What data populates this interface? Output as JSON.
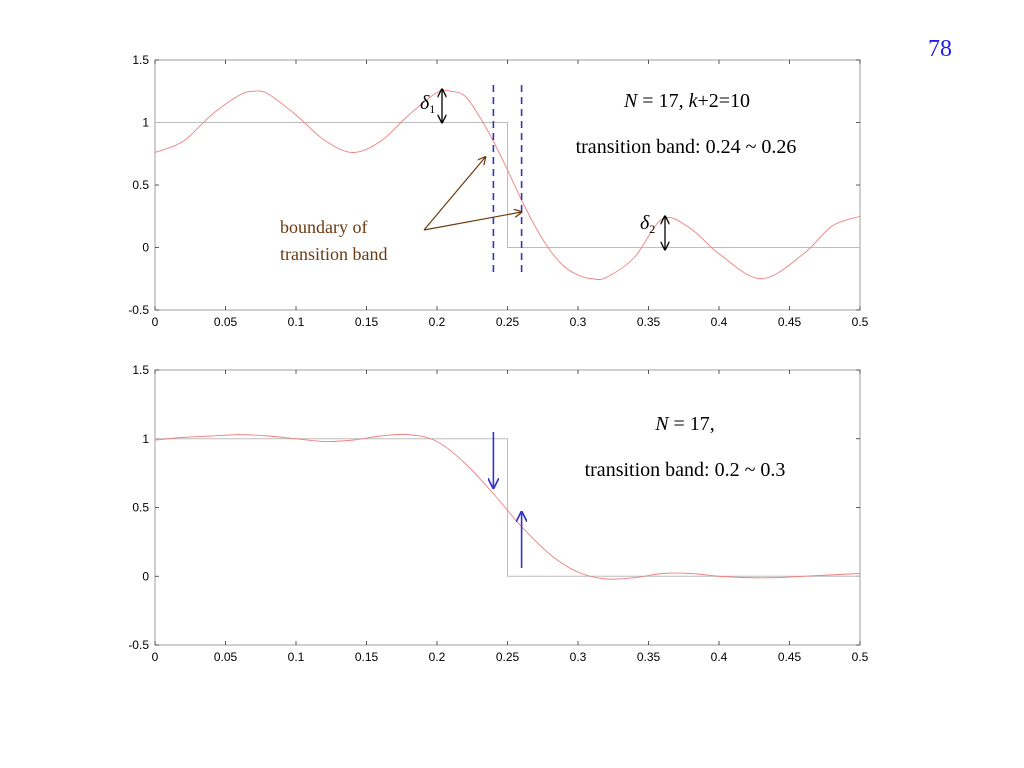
{
  "slide": {
    "page_number": "78",
    "page_number_color": "#1f1fe0"
  },
  "colors": {
    "ideal": "#bdbdbd",
    "response": "#f08080",
    "boundary": "#3333bb",
    "annotation_arrow": "#6b3a10",
    "annotation_text": "#6b3a10",
    "blue_arrow": "#3333cc",
    "axes": "#888888"
  },
  "chart_data": [
    {
      "type": "line",
      "xlim": [
        0,
        0.5
      ],
      "ylim": [
        -0.5,
        1.5
      ],
      "x_ticks": [
        "0",
        "0.05",
        "0.1",
        "0.15",
        "0.2",
        "0.25",
        "0.3",
        "0.35",
        "0.4",
        "0.45",
        "0.5"
      ],
      "y_ticks": [
        "1.5",
        "1",
        "0.5",
        "0",
        "-0.5"
      ],
      "grid": false,
      "series": [
        {
          "style": "ideal-lowpass",
          "x": [
            0,
            0.25,
            0.25,
            0.5
          ],
          "y": [
            1,
            1,
            0,
            0
          ]
        },
        {
          "style": "frequency-response",
          "x": [
            0,
            0.02,
            0.04,
            0.06,
            0.07,
            0.08,
            0.1,
            0.12,
            0.14,
            0.16,
            0.18,
            0.2,
            0.21,
            0.22,
            0.23,
            0.24,
            0.25,
            0.26,
            0.27,
            0.28,
            0.29,
            0.3,
            0.31,
            0.32,
            0.34,
            0.36,
            0.38,
            0.4,
            0.43,
            0.46,
            0.48,
            0.5
          ],
          "y": [
            0.76,
            0.85,
            1.06,
            1.22,
            1.25,
            1.23,
            1.06,
            0.86,
            0.76,
            0.85,
            1.06,
            1.24,
            1.25,
            1.21,
            1.05,
            0.85,
            0.62,
            0.38,
            0.16,
            -0.02,
            -0.15,
            -0.22,
            -0.25,
            -0.24,
            -0.08,
            0.23,
            0.15,
            -0.05,
            -0.25,
            -0.05,
            0.17,
            0.25
          ]
        }
      ],
      "boundaries": [
        0.24,
        0.26
      ],
      "annotations": {
        "title_line1": "N = 17, k+2=10",
        "title_line2": "transition band: 0.24 ~ 0.26",
        "boundary_line1": "boundary of",
        "boundary_line2": "transition band",
        "delta1_symbol": "δ",
        "delta1_sub": "1",
        "delta2_symbol": "δ",
        "delta2_sub": "2"
      }
    },
    {
      "type": "line",
      "xlim": [
        0,
        0.5
      ],
      "ylim": [
        -0.5,
        1.5
      ],
      "x_ticks": [
        "0",
        "0.05",
        "0.1",
        "0.15",
        "0.2",
        "0.25",
        "0.3",
        "0.35",
        "0.4",
        "0.45",
        "0.5"
      ],
      "y_ticks": [
        "1.5",
        "1",
        "0.5",
        "0",
        "-0.5"
      ],
      "grid": false,
      "series": [
        {
          "style": "ideal-lowpass",
          "x": [
            0,
            0.25,
            0.25,
            0.5
          ],
          "y": [
            1,
            1,
            0,
            0
          ]
        },
        {
          "style": "frequency-response",
          "x": [
            0,
            0.02,
            0.04,
            0.06,
            0.08,
            0.1,
            0.12,
            0.14,
            0.16,
            0.18,
            0.2,
            0.22,
            0.24,
            0.25,
            0.26,
            0.28,
            0.3,
            0.32,
            0.34,
            0.36,
            0.38,
            0.4,
            0.42,
            0.44,
            0.46,
            0.48,
            0.5
          ],
          "y": [
            0.99,
            1.01,
            1.02,
            1.03,
            1.02,
            1.0,
            0.98,
            0.99,
            1.02,
            1.03,
            0.98,
            0.82,
            0.6,
            0.48,
            0.36,
            0.16,
            0.03,
            -0.02,
            -0.01,
            0.02,
            0.02,
            0.0,
            -0.01,
            -0.01,
            0.0,
            0.01,
            0.02
          ]
        }
      ],
      "arrows_x": [
        0.24,
        0.26
      ],
      "annotations": {
        "title_line1": "N = 17,",
        "title_line2": "transition band: 0.2 ~ 0.3"
      }
    }
  ]
}
